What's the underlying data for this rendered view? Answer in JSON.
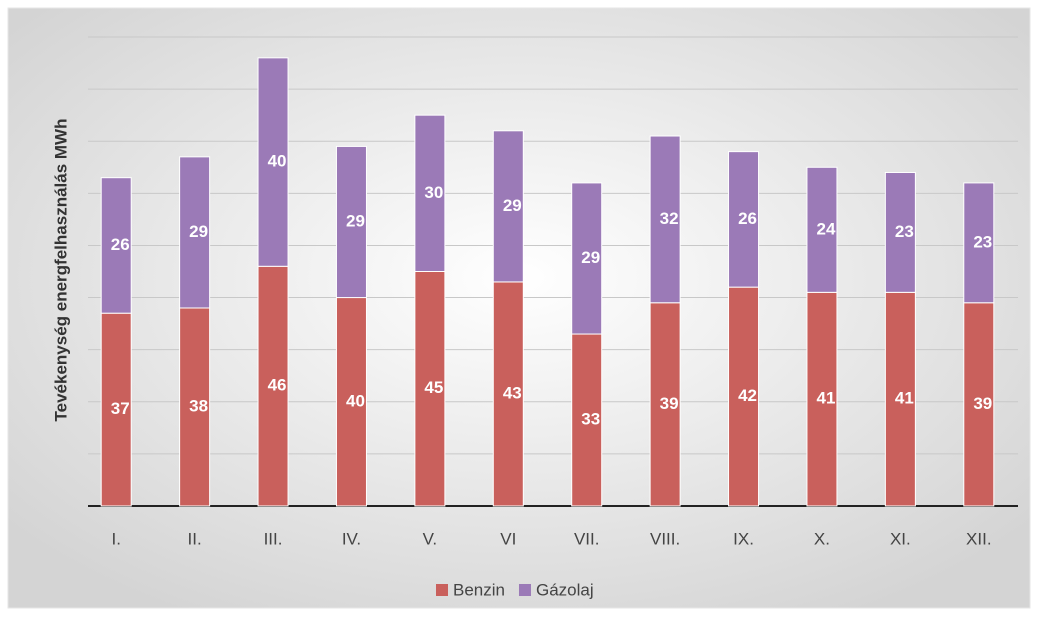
{
  "chart_data": {
    "type": "stacked_bar",
    "y_label": "Tevékenység  energfelhasználás MWh",
    "categories": [
      "I.",
      "II.",
      "III.",
      "IV.",
      "V.",
      "VI",
      "VII.",
      "VIII.",
      "IX.",
      "X.",
      "XI.",
      "XII."
    ],
    "series": [
      {
        "name": "Benzin",
        "color": "#c9605c",
        "values": [
          37,
          38,
          46,
          40,
          45,
          43,
          33,
          39,
          42,
          41,
          41,
          39
        ]
      },
      {
        "name": "Gázolaj",
        "color": "#9b7ab7",
        "values": [
          26,
          29,
          40,
          29,
          30,
          29,
          29,
          32,
          26,
          24,
          23,
          23
        ]
      }
    ],
    "ylim": [
      0,
      90
    ],
    "yticks": [
      0,
      10,
      20,
      30,
      40,
      50,
      60,
      70,
      80,
      90
    ],
    "grid": true,
    "legend": "bottom"
  }
}
